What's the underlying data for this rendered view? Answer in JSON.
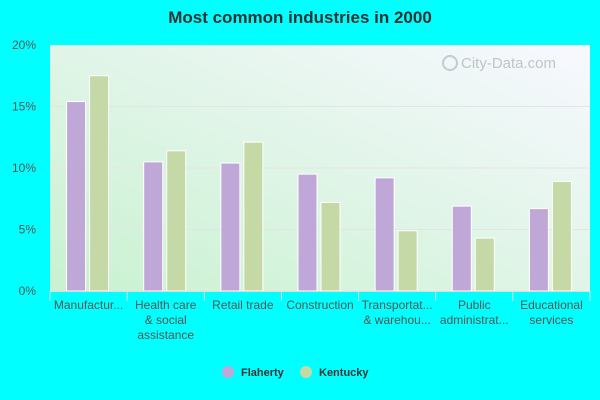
{
  "chart_data": {
    "type": "bar",
    "title": "Most common industries in 2000",
    "categories": [
      [
        "Manufactur..."
      ],
      [
        "Health care",
        "& social",
        "assistance"
      ],
      [
        "Retail trade"
      ],
      [
        "Construction"
      ],
      [
        "Transportat...",
        "& warehou..."
      ],
      [
        "Public",
        "administrat..."
      ],
      [
        "Educational",
        "services"
      ]
    ],
    "series": [
      {
        "name": "Flaherty",
        "color": "#bfa8d8",
        "values": [
          15.4,
          10.5,
          10.4,
          9.5,
          9.2,
          6.9,
          6.7
        ]
      },
      {
        "name": "Kentucky",
        "color": "#c4d9a6",
        "values": [
          17.5,
          11.4,
          12.1,
          7.2,
          4.9,
          4.3,
          8.9
        ]
      }
    ],
    "ylim": [
      0,
      20
    ],
    "yticks": [
      0,
      5,
      10,
      15,
      20
    ],
    "ytick_labels": [
      "0%",
      "5%",
      "10%",
      "15%",
      "20%"
    ],
    "grid": true,
    "legend_position": "bottom",
    "watermark": "City-Data.com",
    "xlabel": "",
    "ylabel": ""
  }
}
